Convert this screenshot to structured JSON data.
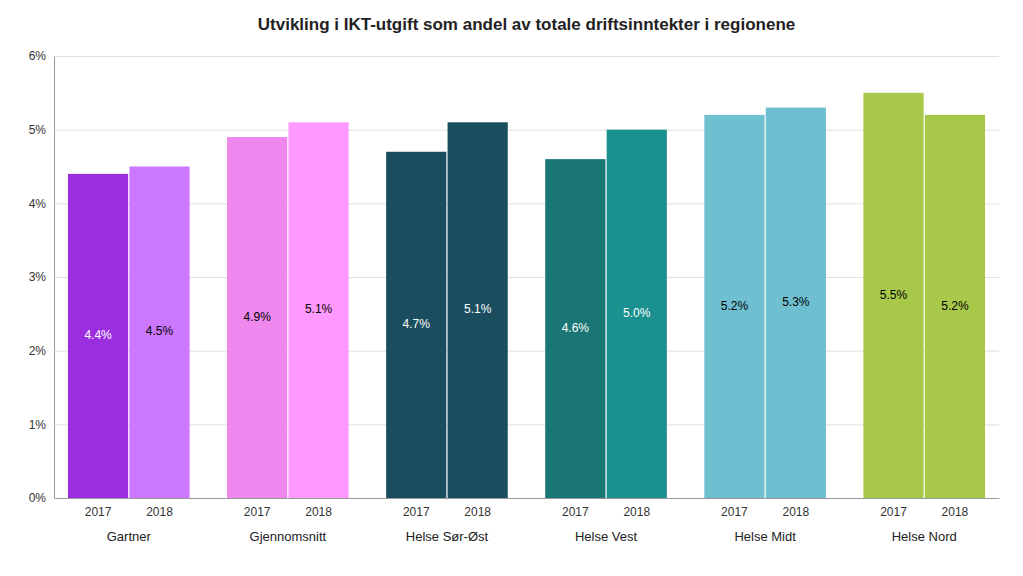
{
  "chart_data": {
    "type": "bar",
    "title": "Utvikling i IKT-utgift som andel av totale driftsinntekter i regionene",
    "categories": [
      "Gartner",
      "Gjennomsnitt",
      "Helse Sør-Øst",
      "Helse Vest",
      "Helse Midt",
      "Helse Nord"
    ],
    "series": [
      {
        "name": "2017",
        "values": [
          4.4,
          4.9,
          4.7,
          4.6,
          5.2,
          5.5
        ],
        "value_labels": [
          "4.4%",
          "4.9%",
          "4.7%",
          "4.6%",
          "5.2%",
          "5.5%"
        ],
        "colors": [
          "#9B2FE0",
          "#EE88EE",
          "#1A4E5E",
          "#1A7575",
          "#6EC0D0",
          "#A8C84A"
        ]
      },
      {
        "name": "2018",
        "values": [
          4.5,
          5.1,
          5.1,
          5.0,
          5.3,
          5.2
        ],
        "value_labels": [
          "4.5%",
          "5.1%",
          "5.1%",
          "5.0%",
          "5.3%",
          "5.2%"
        ],
        "colors": [
          "#CC77FF",
          "#FF99FF",
          "#1A4E5E",
          "#1A9090",
          "#6EC0D0",
          "#A8C84A"
        ]
      }
    ],
    "ylim": [
      0,
      6.0
    ],
    "yticks": [
      {
        "value": 0,
        "label": "0%"
      },
      {
        "value": 1,
        "label": "1%"
      },
      {
        "value": 2,
        "label": "2%"
      },
      {
        "value": 3,
        "label": "3%"
      },
      {
        "value": 4,
        "label": "4%"
      },
      {
        "value": 5,
        "label": "5%"
      },
      {
        "value": 6,
        "label": "6%"
      }
    ],
    "grid": true,
    "data_labels": true
  }
}
